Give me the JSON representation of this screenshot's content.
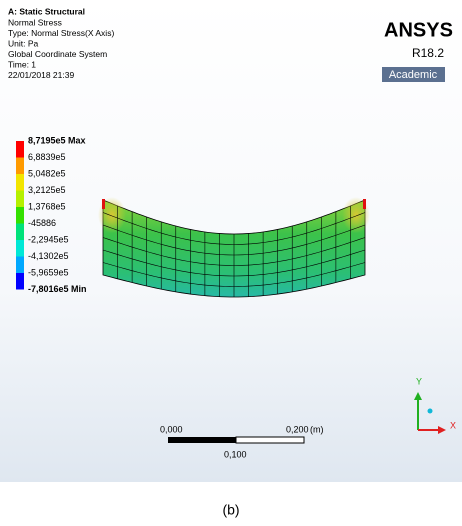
{
  "header": {
    "title": "A: Static Structural",
    "lines": [
      "Normal Stress",
      "Type: Normal Stress(X Axis)",
      "Unit: Pa",
      "Global Coordinate System",
      "Time: 1",
      "22/01/2018 21:39"
    ]
  },
  "logo": {
    "brand": "ANSYS",
    "version": "R18.2",
    "edition": "Academic"
  },
  "legend": {
    "labels": [
      "8,7195e5 Max",
      "6,8839e5",
      "5,0482e5",
      "3,2125e5",
      "1,3768e5",
      "-45886",
      "-2,2945e5",
      "-4,1302e5",
      "-5,9659e5",
      "-7,8016e5 Min"
    ]
  },
  "scale_bar": {
    "left": "0,000",
    "right": "0,200",
    "unit": "(m)",
    "middle": "0,100"
  },
  "triad": {
    "y": "Y",
    "x": "X"
  },
  "caption": "(b)"
}
